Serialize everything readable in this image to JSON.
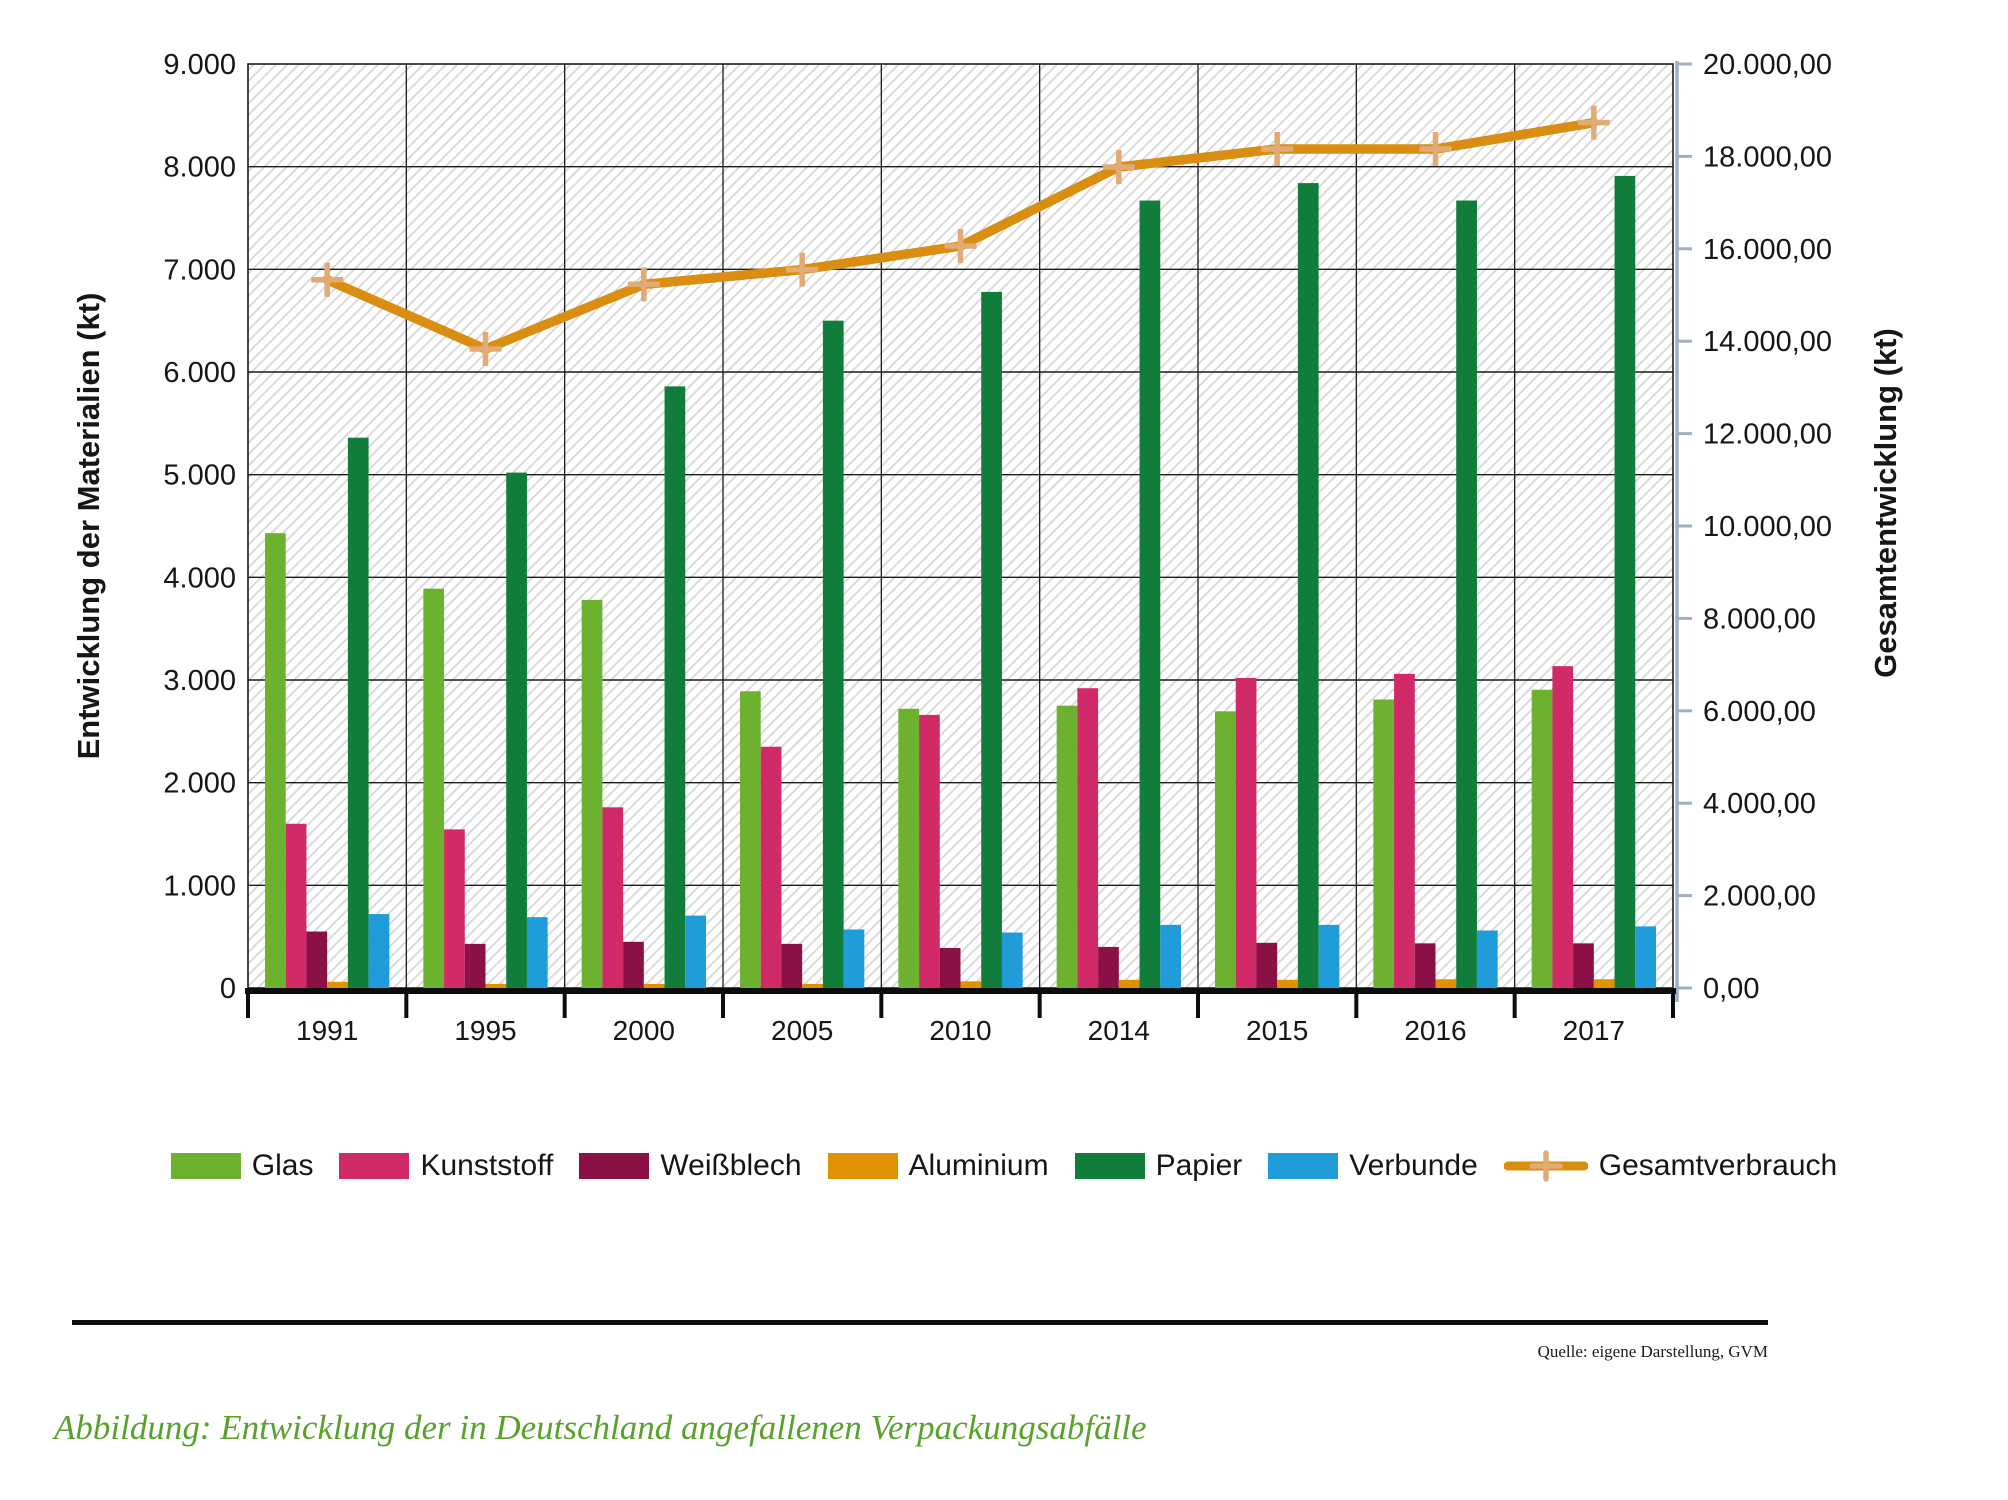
{
  "figure": {
    "caption": "Abbildung: Entwicklung der in Deutschland angefallenen Verpackungsabfälle",
    "source": "Quelle: eigene Darstellung, GVM",
    "caption_color": "#57a22b"
  },
  "chart_data": {
    "type": "bar",
    "subtype": "grouped-bars-with-line-overlay",
    "categories": [
      "1991",
      "1995",
      "2000",
      "2005",
      "2010",
      "2014",
      "2015",
      "2016",
      "2017"
    ],
    "series": [
      {
        "name": "Glas",
        "color": "#6cb22e",
        "axis": "left",
        "values": [
          4430,
          3890,
          3780,
          2890,
          2720,
          2750,
          2695,
          2810,
          2905
        ]
      },
      {
        "name": "Kunststoff",
        "color": "#d02a68",
        "axis": "left",
        "values": [
          1600,
          1545,
          1760,
          2350,
          2660,
          2920,
          3020,
          3060,
          3135
        ]
      },
      {
        "name": "Weißblech",
        "color": "#8a1045",
        "axis": "left",
        "values": [
          550,
          430,
          450,
          430,
          390,
          400,
          440,
          435,
          435
        ]
      },
      {
        "name": "Aluminium",
        "color": "#e09200",
        "axis": "left",
        "values": [
          60,
          40,
          40,
          40,
          65,
          80,
          80,
          85,
          85
        ]
      },
      {
        "name": "Papier",
        "color": "#107e3a",
        "axis": "left",
        "values": [
          5360,
          5020,
          5860,
          6500,
          6780,
          7670,
          7840,
          7670,
          7910
        ]
      },
      {
        "name": "Verbunde",
        "color": "#1f9cd9",
        "axis": "left",
        "values": [
          720,
          690,
          705,
          570,
          540,
          615,
          615,
          560,
          600
        ]
      }
    ],
    "line_series": {
      "name": "Gesamtverbrauch",
      "color": "#d98e12",
      "marker": "plus",
      "marker_color": "#e2aa74",
      "axis": "right",
      "values": [
        15330,
        13830,
        15230,
        15550,
        16060,
        17770,
        18160,
        18160,
        18730
      ]
    },
    "left_axis": {
      "title": "Entwicklung der Materialien (kt)",
      "min": 0,
      "max": 9000,
      "step": 1000,
      "tick_labels": [
        "0",
        "1.000",
        "2.000",
        "3.000",
        "4.000",
        "5.000",
        "6.000",
        "7.000",
        "8.000",
        "9.000"
      ]
    },
    "right_axis": {
      "title": "Gesamtentwicklung (kt)",
      "min": 0,
      "max": 20000,
      "step": 2000,
      "tick_labels": [
        "0,00",
        "2.000,00",
        "4.000,00",
        "6.000,00",
        "8.000,00",
        "10.000,00",
        "12.000,00",
        "14.000,00",
        "16.000,00",
        "18.000,00",
        "20.000,00"
      ]
    },
    "grid": true,
    "hatch_background": true,
    "legend_position": "bottom",
    "style_colors": {
      "grid": "#1c1c1c",
      "hatch_line": "#d7d7d7",
      "bottom_axis": "#0d0d0d",
      "right_axis_line": "#9fb0c4",
      "text": "#161616"
    }
  }
}
